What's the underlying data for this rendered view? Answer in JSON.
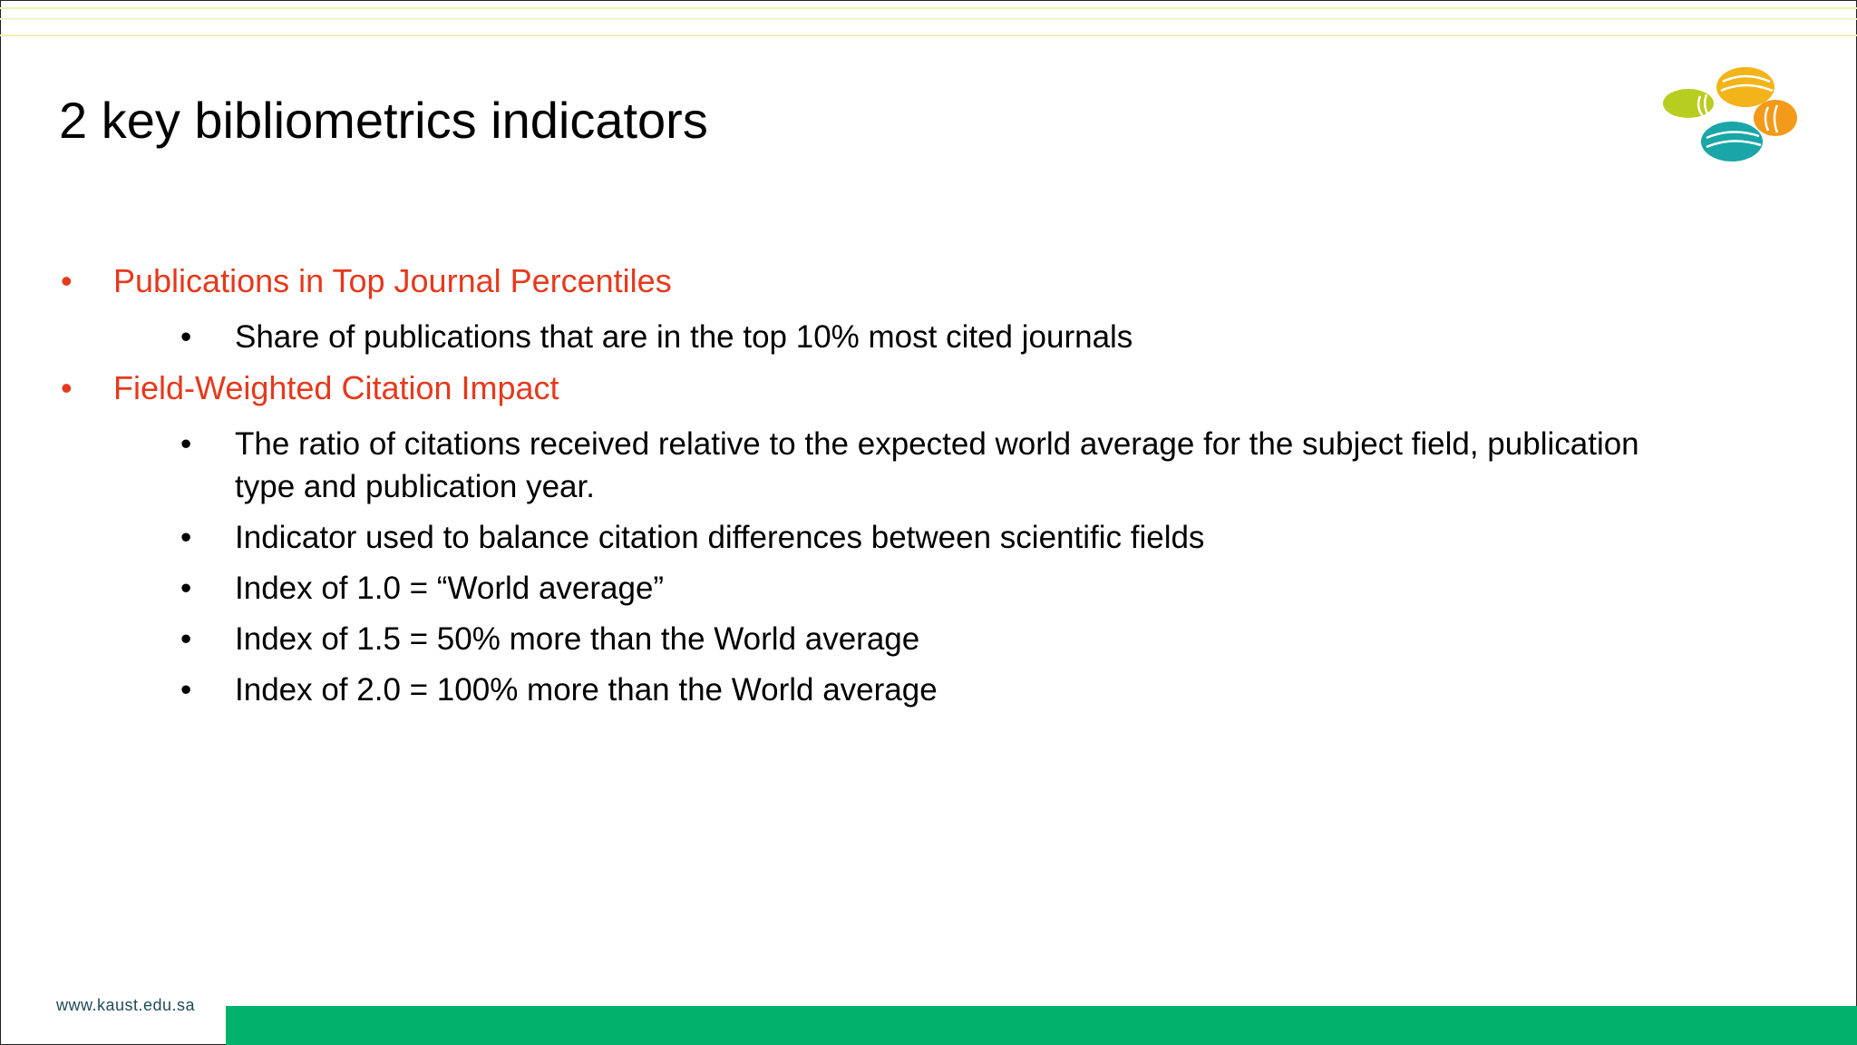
{
  "slide": {
    "title": "2 key bibliometrics indicators",
    "bullets": [
      {
        "text": "Publications in Top Journal Percentiles",
        "items": [
          "Share of publications that are in the top 10% most cited journals"
        ]
      },
      {
        "text": "Field-Weighted Citation Impact",
        "items": [
          "The ratio of citations received relative to the expected world average for the subject field, publication type and publication year.",
          "Indicator used to balance citation differences between scientific fields",
          "Index of 1.0 = “World average”",
          "Index of 1.5 = 50% more than the World average",
          "Index of 2.0 = 100% more than the World average"
        ]
      }
    ],
    "footer": "www.kaust.edu.sa"
  }
}
